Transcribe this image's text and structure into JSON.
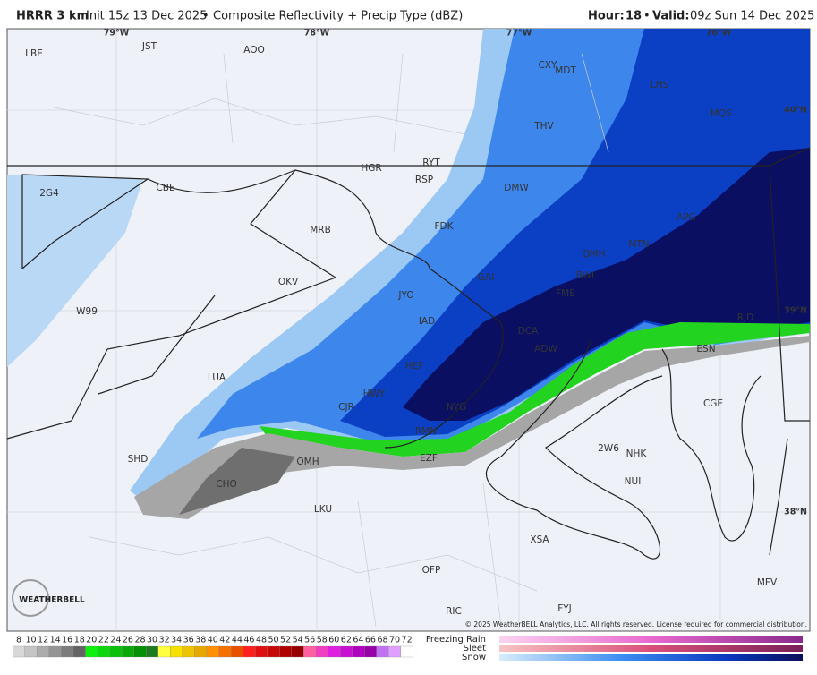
{
  "header": {
    "model": "HRRR 3 km",
    "init": "Init 15z 13 Dec 2025",
    "separator": "•",
    "product": "Composite Reflectivity + Precip Type (dBZ)",
    "hour_label": "Hour:",
    "hour": 18,
    "valid_label": "Valid:",
    "valid": "09z Sun 14 Dec 2025"
  },
  "map": {
    "longitudes": [
      "79°W",
      "78°W",
      "77°W",
      "76°W"
    ],
    "latitudes": [
      "40°N",
      "39°N",
      "38°N"
    ],
    "stations": [
      "LBE",
      "JST",
      "AOO",
      "CXY",
      "MDT",
      "LNS",
      "MQS",
      "THV",
      "HGR",
      "RYT",
      "RSP",
      "CBE",
      "2G4",
      "DMW",
      "MRB",
      "FDK",
      "APG",
      "MTN",
      "DMH",
      "BWI",
      "OKV",
      "GAI",
      "JYO",
      "FME",
      "IAD",
      "RJD",
      "W99",
      "DCA",
      "ADW",
      "HEF",
      "ESN",
      "LUA",
      "HWY",
      "CJR",
      "NYG",
      "CGE",
      "RMN",
      "SHD",
      "OMH",
      "EZF",
      "2W6",
      "NHK",
      "CHO",
      "NUI",
      "LKU",
      "XSA",
      "OFP",
      "RIC",
      "FYJ",
      "MFV"
    ],
    "copyright": "© 2025 WeatherBELL Analytics, LLC. All rights reserved. License required for commercial distribution.",
    "logo": "WEATHERBELL"
  },
  "legend": {
    "scale": [
      8,
      10,
      12,
      14,
      16,
      18,
      20,
      22,
      24,
      26,
      28,
      30,
      32,
      34,
      36,
      38,
      40,
      42,
      44,
      46,
      48,
      50,
      52,
      54,
      56,
      58,
      60,
      62,
      64,
      66,
      68,
      70,
      72
    ],
    "precip_types": [
      "Freezing Rain",
      "Sleet",
      "Snow"
    ]
  }
}
